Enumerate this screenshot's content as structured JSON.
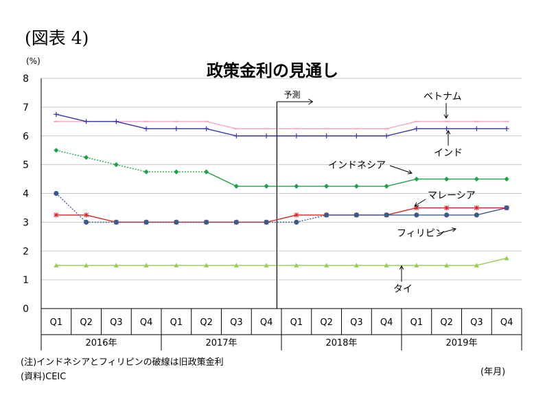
{
  "figure_label": "(図表 4)",
  "notes": {
    "note1": "(注)インドネシアとフィリピンの破線は旧政策金利",
    "note2": "(資料)CEIC",
    "x_unit": "(年月)"
  },
  "chart_data": {
    "type": "line",
    "title": "政策金利の見通し",
    "ylabel": "(%)",
    "xlabel": "",
    "ylim": [
      0,
      8
    ],
    "yticks": [
      0,
      1,
      2,
      3,
      4,
      5,
      6,
      7,
      8
    ],
    "grid": true,
    "categories": [
      "Q1",
      "Q2",
      "Q3",
      "Q4",
      "Q1",
      "Q2",
      "Q3",
      "Q4",
      "Q1",
      "Q2",
      "Q3",
      "Q4",
      "Q1",
      "Q2",
      "Q3",
      "Q4"
    ],
    "years": [
      "2016年",
      "2017年",
      "2018年",
      "2019年"
    ],
    "forecast_label": "予測",
    "forecast_start_index": 8,
    "series": [
      {
        "name": "ベトナム",
        "color": "#f4a6c8",
        "marker": "dash",
        "dashed_until": null,
        "values": [
          6.5,
          6.5,
          6.5,
          6.5,
          6.5,
          6.5,
          6.25,
          6.25,
          6.25,
          6.25,
          6.25,
          6.25,
          6.5,
          6.5,
          6.5,
          6.5
        ]
      },
      {
        "name": "インド",
        "color": "#3333aa",
        "marker": "plus",
        "dashed_until": null,
        "values": [
          6.75,
          6.5,
          6.5,
          6.25,
          6.25,
          6.25,
          6.0,
          6.0,
          6.0,
          6.0,
          6.0,
          6.0,
          6.25,
          6.25,
          6.25,
          6.25
        ]
      },
      {
        "name": "インドネシア",
        "color": "#1aa34a",
        "marker": "diamond",
        "dashed_until": 5,
        "values": [
          5.5,
          5.25,
          5.0,
          4.75,
          4.75,
          4.75,
          4.25,
          4.25,
          4.25,
          4.25,
          4.25,
          4.25,
          4.5,
          4.5,
          4.5,
          4.5
        ]
      },
      {
        "name": "マレーシア",
        "color": "#dd2222",
        "marker": "star",
        "dashed_until": null,
        "values": [
          3.25,
          3.25,
          3.0,
          3.0,
          3.0,
          3.0,
          3.0,
          3.0,
          3.25,
          3.25,
          3.25,
          3.25,
          3.5,
          3.5,
          3.5,
          3.5
        ]
      },
      {
        "name": "フィリピン",
        "color": "#3a5a8c",
        "marker": "circle",
        "dashed_until": 9,
        "values": [
          4.0,
          3.0,
          3.0,
          3.0,
          3.0,
          3.0,
          3.0,
          3.0,
          3.0,
          3.25,
          3.25,
          3.25,
          3.25,
          3.25,
          3.25,
          3.5
        ]
      },
      {
        "name": "タイ",
        "color": "#99cc55",
        "marker": "triangle",
        "dashed_until": null,
        "values": [
          1.5,
          1.5,
          1.5,
          1.5,
          1.5,
          1.5,
          1.5,
          1.5,
          1.5,
          1.5,
          1.5,
          1.5,
          1.5,
          1.5,
          1.5,
          1.75
        ]
      }
    ],
    "annotations": [
      {
        "text": "ベトナム",
        "series": 0
      },
      {
        "text": "インド",
        "series": 1
      },
      {
        "text": "インドネシア",
        "series": 2
      },
      {
        "text": "マレーシア",
        "series": 3
      },
      {
        "text": "フィリピン",
        "series": 4
      },
      {
        "text": "タイ",
        "series": 5
      }
    ]
  }
}
